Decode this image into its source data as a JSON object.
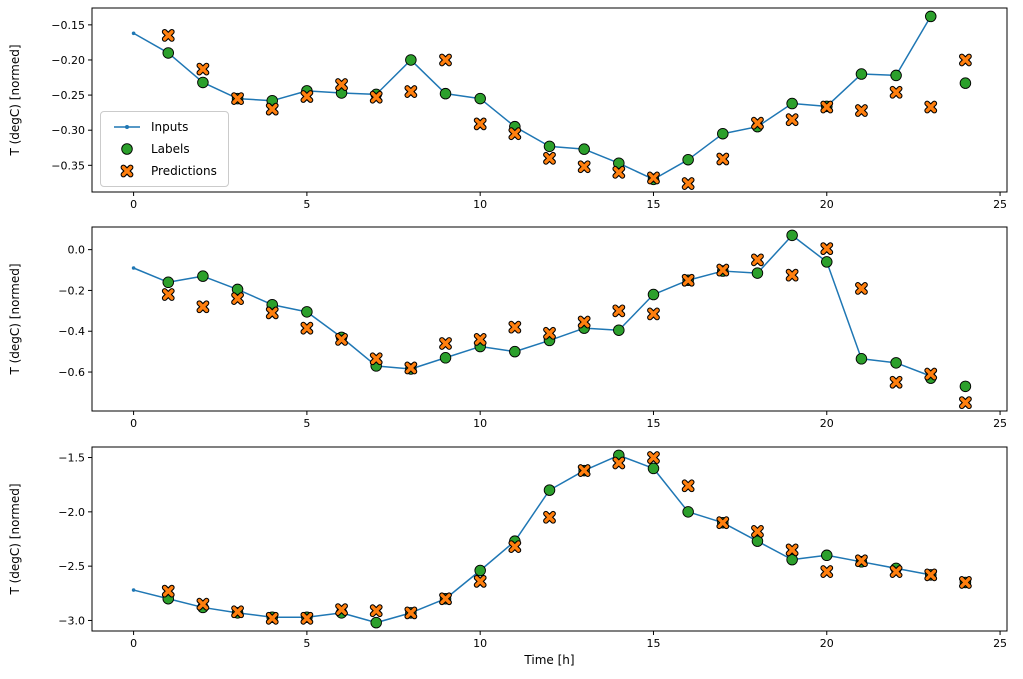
{
  "figure": {
    "background": "#ffffff"
  },
  "legend": {
    "position": "center-left-of-first-subplot",
    "items": [
      "Inputs",
      "Labels",
      "Predictions"
    ]
  },
  "colors": {
    "inputs": "#1f77b4",
    "labels": "#2ca02c",
    "predictions": "#ff7f0e",
    "marker_edge": "#000000",
    "axes": "#000000"
  },
  "chart_data": [
    {
      "type": "line",
      "title": "",
      "ylabel": "T (degC) [normed]",
      "xlabel": "",
      "grid": false,
      "xlim": [
        -1.2,
        25.2
      ],
      "ylim": [
        -0.388,
        -0.126
      ],
      "xticks": [
        0,
        5,
        10,
        15,
        20,
        25
      ],
      "xtick_labels": [
        "0",
        "5",
        "10",
        "15",
        "20",
        "25"
      ],
      "yticks": [
        -0.15,
        -0.2,
        -0.25,
        -0.3,
        -0.35
      ],
      "ytick_labels": [
        "−0.15",
        "−0.20",
        "−0.25",
        "−0.30",
        "−0.35"
      ],
      "series": [
        {
          "name": "Inputs",
          "marker": "line-dot",
          "color": "#1f77b4",
          "x": [
            0,
            1,
            2,
            3,
            4,
            5,
            6,
            7,
            8,
            9,
            10,
            11,
            12,
            13,
            14,
            15,
            16,
            17,
            18,
            19,
            20,
            21,
            22,
            23
          ],
          "y": [
            -0.162,
            -0.19,
            -0.232,
            -0.255,
            -0.258,
            -0.244,
            -0.247,
            -0.249,
            -0.2,
            -0.248,
            -0.255,
            -0.295,
            -0.323,
            -0.327,
            -0.347,
            -0.37,
            -0.342,
            -0.305,
            -0.295,
            -0.262,
            -0.266,
            -0.22,
            -0.222,
            -0.138
          ]
        },
        {
          "name": "Labels",
          "marker": "circle",
          "color": "#2ca02c",
          "edge": "#000000",
          "x": [
            1,
            2,
            3,
            4,
            5,
            6,
            7,
            8,
            9,
            10,
            11,
            12,
            13,
            14,
            15,
            16,
            17,
            18,
            19,
            20,
            21,
            22,
            23,
            24
          ],
          "y": [
            -0.19,
            -0.232,
            -0.255,
            -0.258,
            -0.244,
            -0.247,
            -0.249,
            -0.2,
            -0.248,
            -0.255,
            -0.295,
            -0.323,
            -0.327,
            -0.347,
            -0.37,
            -0.342,
            -0.305,
            -0.295,
            -0.262,
            -0.266,
            -0.22,
            -0.222,
            -0.138,
            -0.233
          ]
        },
        {
          "name": "Predictions",
          "marker": "X",
          "color": "#ff7f0e",
          "edge": "#000000",
          "x": [
            1,
            2,
            3,
            4,
            5,
            6,
            7,
            8,
            9,
            10,
            11,
            12,
            13,
            14,
            15,
            16,
            17,
            18,
            19,
            20,
            21,
            22,
            23,
            24
          ],
          "y": [
            -0.165,
            -0.213,
            -0.255,
            -0.27,
            -0.252,
            -0.235,
            -0.253,
            -0.245,
            -0.2,
            -0.291,
            -0.305,
            -0.34,
            -0.352,
            -0.36,
            -0.368,
            -0.376,
            -0.341,
            -0.29,
            -0.285,
            -0.267,
            -0.272,
            -0.246,
            -0.267,
            -0.2
          ]
        }
      ]
    },
    {
      "type": "line",
      "title": "",
      "ylabel": "T (degC) [normed]",
      "xlabel": "",
      "grid": false,
      "xlim": [
        -1.2,
        25.2
      ],
      "ylim": [
        -0.791,
        0.111
      ],
      "xticks": [
        0,
        5,
        10,
        15,
        20,
        25
      ],
      "xtick_labels": [
        "0",
        "5",
        "10",
        "15",
        "20",
        "25"
      ],
      "yticks": [
        0.0,
        -0.2,
        -0.4,
        -0.6
      ],
      "ytick_labels": [
        "0.0",
        "−0.2",
        "−0.4",
        "−0.6"
      ],
      "series": [
        {
          "name": "Inputs",
          "marker": "line-dot",
          "color": "#1f77b4",
          "x": [
            0,
            1,
            2,
            3,
            4,
            5,
            6,
            7,
            8,
            9,
            10,
            11,
            12,
            13,
            14,
            15,
            16,
            17,
            18,
            19,
            20,
            21,
            22,
            23
          ],
          "y": [
            -0.09,
            -0.16,
            -0.13,
            -0.195,
            -0.27,
            -0.305,
            -0.43,
            -0.57,
            -0.585,
            -0.53,
            -0.475,
            -0.5,
            -0.445,
            -0.385,
            -0.395,
            -0.22,
            -0.15,
            -0.105,
            -0.115,
            0.07,
            -0.06,
            -0.535,
            -0.555,
            -0.62
          ]
        },
        {
          "name": "Labels",
          "marker": "circle",
          "color": "#2ca02c",
          "edge": "#000000",
          "x": [
            1,
            2,
            3,
            4,
            5,
            6,
            7,
            8,
            9,
            10,
            11,
            12,
            13,
            14,
            15,
            16,
            17,
            18,
            19,
            20,
            21,
            22,
            23,
            24
          ],
          "y": [
            -0.16,
            -0.13,
            -0.195,
            -0.27,
            -0.305,
            -0.43,
            -0.57,
            -0.585,
            -0.53,
            -0.475,
            -0.5,
            -0.445,
            -0.385,
            -0.395,
            -0.22,
            -0.15,
            -0.105,
            -0.115,
            0.07,
            -0.06,
            -0.535,
            -0.555,
            -0.63,
            -0.67
          ]
        },
        {
          "name": "Predictions",
          "marker": "X",
          "color": "#ff7f0e",
          "edge": "#000000",
          "x": [
            1,
            2,
            3,
            4,
            5,
            6,
            7,
            8,
            9,
            10,
            11,
            12,
            13,
            14,
            15,
            16,
            17,
            18,
            19,
            20,
            21,
            22,
            23,
            24
          ],
          "y": [
            -0.22,
            -0.28,
            -0.24,
            -0.31,
            -0.385,
            -0.44,
            -0.535,
            -0.58,
            -0.46,
            -0.44,
            -0.38,
            -0.41,
            -0.355,
            -0.3,
            -0.315,
            -0.15,
            -0.1,
            -0.05,
            -0.125,
            0.005,
            -0.19,
            -0.65,
            -0.61,
            -0.75
          ]
        }
      ]
    },
    {
      "type": "line",
      "title": "",
      "ylabel": "T (degC) [normed]",
      "xlabel": "Time [h]",
      "grid": false,
      "xlim": [
        -1.2,
        25.2
      ],
      "ylim": [
        -3.097,
        -1.403
      ],
      "xticks": [
        0,
        5,
        10,
        15,
        20,
        25
      ],
      "xtick_labels": [
        "0",
        "5",
        "10",
        "15",
        "20",
        "25"
      ],
      "yticks": [
        -1.5,
        -2.0,
        -2.5,
        -3.0
      ],
      "ytick_labels": [
        "−1.5",
        "−2.0",
        "−2.5",
        "−3.0"
      ],
      "series": [
        {
          "name": "Inputs",
          "marker": "line-dot",
          "color": "#1f77b4",
          "x": [
            0,
            1,
            2,
            3,
            4,
            5,
            6,
            7,
            8,
            9,
            10,
            11,
            12,
            13,
            14,
            15,
            16,
            17,
            18,
            19,
            20,
            21,
            22,
            23
          ],
          "y": [
            -2.72,
            -2.8,
            -2.88,
            -2.93,
            -2.97,
            -2.97,
            -2.93,
            -3.02,
            -2.93,
            -2.8,
            -2.54,
            -2.27,
            -1.8,
            -1.62,
            -1.48,
            -1.6,
            -2.0,
            -2.1,
            -2.27,
            -2.44,
            -2.4,
            -2.46,
            -2.52,
            -2.58
          ]
        },
        {
          "name": "Labels",
          "marker": "circle",
          "color": "#2ca02c",
          "edge": "#000000",
          "x": [
            1,
            2,
            3,
            4,
            5,
            6,
            7,
            8,
            9,
            10,
            11,
            12,
            13,
            14,
            15,
            16,
            17,
            18,
            19,
            20,
            21,
            22,
            23,
            24
          ],
          "y": [
            -2.8,
            -2.88,
            -2.93,
            -2.97,
            -2.97,
            -2.93,
            -3.02,
            -2.93,
            -2.8,
            -2.54,
            -2.27,
            -1.8,
            -1.62,
            -1.48,
            -1.6,
            -2.0,
            -2.1,
            -2.27,
            -2.44,
            -2.4,
            -2.46,
            -2.52,
            -2.58,
            -2.65
          ]
        },
        {
          "name": "Predictions",
          "marker": "X",
          "color": "#ff7f0e",
          "edge": "#000000",
          "x": [
            1,
            2,
            3,
            4,
            5,
            6,
            7,
            8,
            9,
            10,
            11,
            12,
            13,
            14,
            15,
            16,
            17,
            18,
            19,
            20,
            21,
            22,
            23,
            24
          ],
          "y": [
            -2.73,
            -2.85,
            -2.92,
            -2.98,
            -2.98,
            -2.9,
            -2.91,
            -2.93,
            -2.8,
            -2.64,
            -2.32,
            -2.05,
            -1.62,
            -1.55,
            -1.5,
            -1.76,
            -2.1,
            -2.18,
            -2.35,
            -2.55,
            -2.45,
            -2.55,
            -2.58,
            -2.65
          ]
        }
      ]
    }
  ]
}
